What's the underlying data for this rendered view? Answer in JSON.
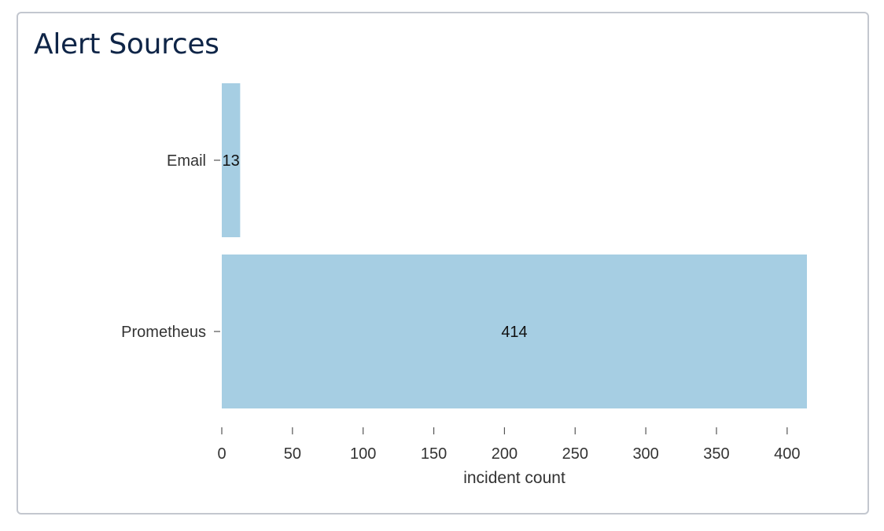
{
  "card": {
    "title": "Alert Sources"
  },
  "chart_data": {
    "type": "bar",
    "orientation": "horizontal",
    "categories": [
      "Email",
      "Prometheus"
    ],
    "values": [
      13,
      414
    ],
    "data_labels": [
      "13",
      "414"
    ],
    "xlabel": "incident count",
    "ylabel": "",
    "xlim": [
      0,
      414
    ],
    "xticks": [
      0,
      50,
      100,
      150,
      200,
      250,
      300,
      350,
      400
    ],
    "grid": false,
    "legend": "none",
    "colors": {
      "bar": "#a6cee3",
      "text": "#333333",
      "data_label": "#111111",
      "tick": "#555555",
      "title": "#0f2547",
      "border": "#c3c7cf"
    }
  }
}
